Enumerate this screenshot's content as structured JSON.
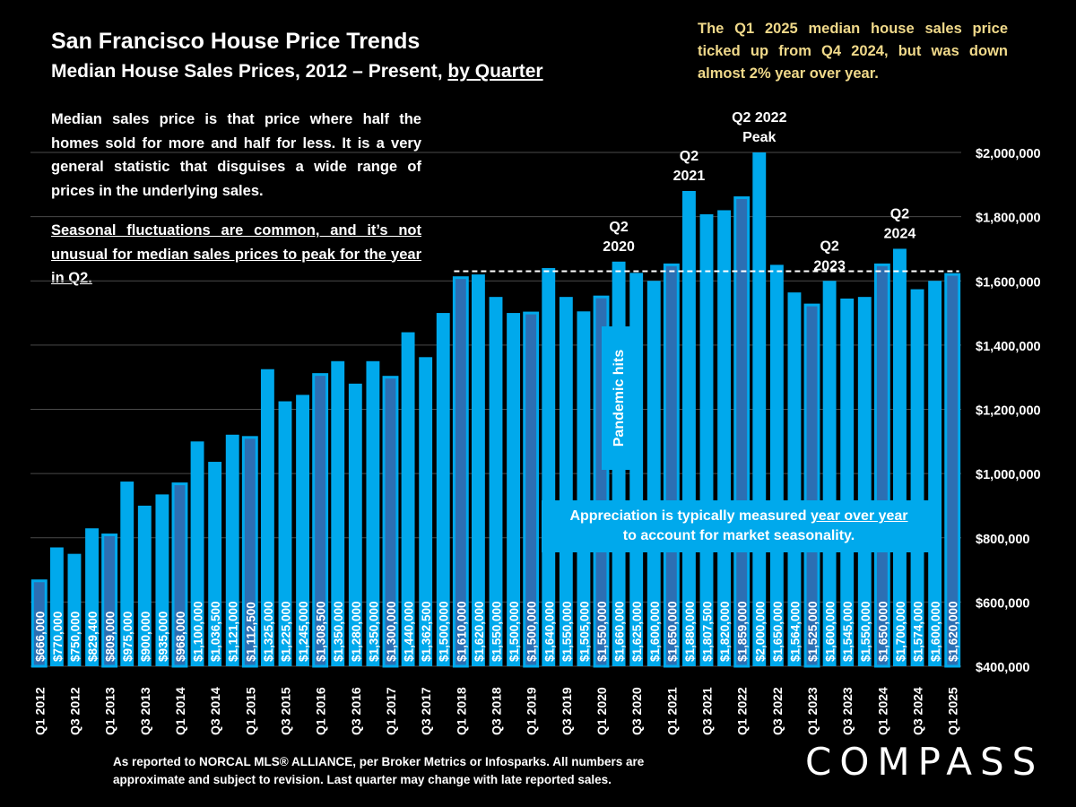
{
  "header": {
    "title": "San Francisco House Price Trends",
    "subtitle_prefix": "Median House Sales Prices, 2012 – Present, ",
    "subtitle_link": "by Quarter"
  },
  "callout": "The Q1 2025 median house sales price ticked up from Q4 2024, but was down almost 2% year over year.",
  "description": {
    "p1": "Median sales price is that price where half the homes sold for more and half for less. It is a very general statistic that disguises a wide range of prices in the underlying sales.",
    "p2": "Seasonal fluctuations are common, and it’s not unusual for median sales prices to peak for the year in Q2."
  },
  "appreciation": {
    "line1_prefix": "Appreciation is typically measured ",
    "line1_link": "year over year",
    "line2": "to account for market seasonality."
  },
  "pandemic_label": "Pandemic hits",
  "footnote": "As reported to NORCAL MLS® ALLIANCE, per Broker Metrics or Infosparks. All numbers are approximate and subject to revision. Last quarter may change with late reported sales.",
  "logo": "COMPASS",
  "colors": {
    "bar": "#00a9ec",
    "bar_q1": "#2c6fb3",
    "callout_text": "#f0d98a",
    "background": "#000000"
  },
  "chart_data": {
    "type": "bar",
    "ylim": [
      400000,
      2000000
    ],
    "yticks": [
      400000,
      600000,
      800000,
      1000000,
      1200000,
      1400000,
      1600000,
      1800000,
      2000000
    ],
    "ytick_labels": [
      "$400,000",
      "$600,000",
      "$800,000",
      "$1,000,000",
      "$1,200,000",
      "$1,400,000",
      "$1,600,000",
      "$1,800,000",
      "$2,000,000"
    ],
    "grid": true,
    "reference_line": 1630000,
    "categories": [
      "Q1 2012",
      "Q2 2012",
      "Q3 2012",
      "Q4 2012",
      "Q1 2013",
      "Q2 2013",
      "Q3 2013",
      "Q4 2013",
      "Q1 2014",
      "Q2 2014",
      "Q3 2014",
      "Q4 2014",
      "Q1 2015",
      "Q2 2015",
      "Q3 2015",
      "Q4 2015",
      "Q1 2016",
      "Q2 2016",
      "Q3 2016",
      "Q4 2016",
      "Q1 2017",
      "Q2 2017",
      "Q3 2017",
      "Q4 2017",
      "Q1 2018",
      "Q2 2018",
      "Q3 2018",
      "Q4 2018",
      "Q1 2019",
      "Q2 2019",
      "Q3 2019",
      "Q4 2019",
      "Q1 2020",
      "Q2 2020",
      "Q3 2020",
      "Q4 2020",
      "Q1 2021",
      "Q2 2021",
      "Q3 2021",
      "Q4 2021",
      "Q1 2022",
      "Q2 2022",
      "Q3 2022",
      "Q4 2022",
      "Q1 2023",
      "Q2 2023",
      "Q3 2023",
      "Q4 2023",
      "Q1 2024",
      "Q2 2024",
      "Q3 2024",
      "Q4 2024",
      "Q1 2025"
    ],
    "xtick_labels": [
      "Q1 2012",
      "Q3 2012",
      "Q1 2013",
      "Q3 2013",
      "Q1 2014",
      "Q3 2014",
      "Q1 2015",
      "Q3 2015",
      "Q1 2016",
      "Q3 2016",
      "Q1 2017",
      "Q3 2017",
      "Q1 2018",
      "Q3 2018",
      "Q1 2019",
      "Q3 2019",
      "Q1 2020",
      "Q3 2020",
      "Q1 2021",
      "Q3 2021",
      "Q1 2022",
      "Q3 2022",
      "Q1 2023",
      "Q3 2023",
      "Q1 2024",
      "Q3 2024",
      "Q1 2025"
    ],
    "values": [
      666000,
      770000,
      750000,
      829400,
      809000,
      975000,
      900000,
      935000,
      968000,
      1100000,
      1036500,
      1121000,
      1112500,
      1325000,
      1225000,
      1245000,
      1308500,
      1350000,
      1280000,
      1350000,
      1300000,
      1440000,
      1362500,
      1500000,
      1610000,
      1620000,
      1550000,
      1500000,
      1500000,
      1640000,
      1550000,
      1505000,
      1550000,
      1660000,
      1625000,
      1600000,
      1650000,
      1880000,
      1807500,
      1820000,
      1859000,
      2000000,
      1650000,
      1564000,
      1525000,
      1600000,
      1545000,
      1550000,
      1650000,
      1700000,
      1574000,
      1600000,
      1620000
    ],
    "value_labels": [
      "$666,000",
      "$770,000",
      "$750,000",
      "$829,400",
      "$809,000",
      "$975,000",
      "$900,000",
      "$935,000",
      "$968,000",
      "$1,100,000",
      "$1,036,500",
      "$1,121,000",
      "$1,112,500",
      "$1,325,000",
      "$1,225,000",
      "$1,245,000",
      "$1,308,500",
      "$1,350,000",
      "$1,280,000",
      "$1,350,000",
      "$1,300,000",
      "$1,440,000",
      "$1,362,500",
      "$1,500,000",
      "$1,610,000",
      "$1,620,000",
      "$1,550,000",
      "$1,500,000",
      "$1,500,000",
      "$1,640,000",
      "$1,550,000",
      "$1,505,000",
      "$1,550,000",
      "$1,660,000",
      "$1,625,000",
      "$1,600,000",
      "$1,650,000",
      "$1,880,000",
      "$1,807,500",
      "$1,820,000",
      "$1,859,000",
      "$2,000,000",
      "$1,650,000",
      "$1,564,000",
      "$1,525,000",
      "$1,600,000",
      "$1,545,000",
      "$1,550,000",
      "$1,650,000",
      "$1,700,000",
      "$1,574,000",
      "$1,600,000",
      "$1,620,000"
    ],
    "highlighted_q1_indices": [
      0,
      4,
      8,
      12,
      16,
      20,
      24,
      28,
      32,
      36,
      40,
      44,
      48,
      52
    ],
    "annotations": [
      {
        "index": 33,
        "lines": [
          "Q2",
          "2020"
        ]
      },
      {
        "index": 37,
        "lines": [
          "Q2",
          "2021"
        ]
      },
      {
        "index": 41,
        "lines": [
          "Q2 2022",
          "Peak"
        ]
      },
      {
        "index": 45,
        "lines": [
          "Q2",
          "2023"
        ]
      },
      {
        "index": 49,
        "lines": [
          "Q2",
          "2024"
        ]
      }
    ]
  }
}
